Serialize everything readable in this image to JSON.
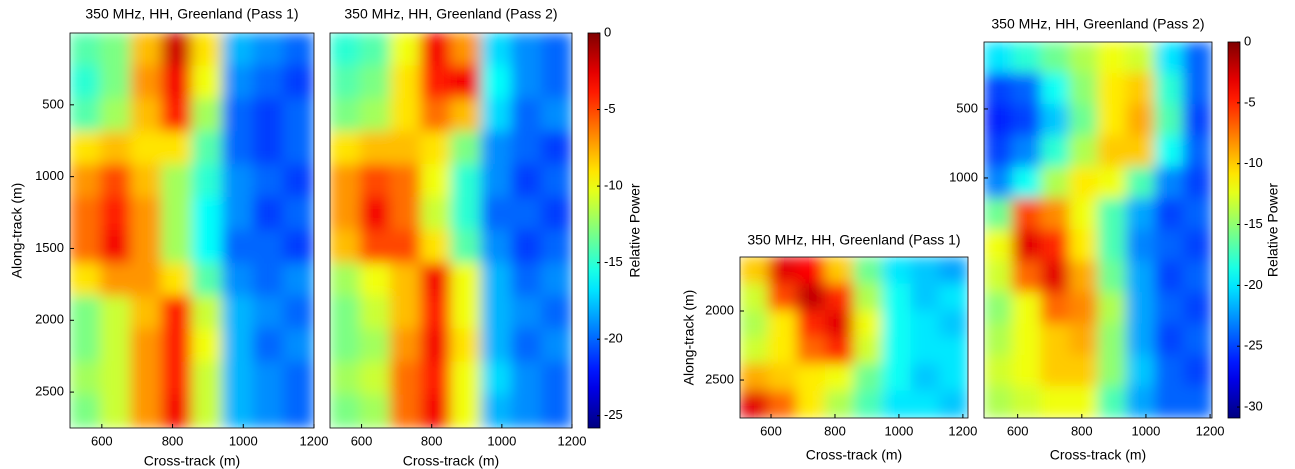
{
  "chart_data": [
    {
      "type": "heatmap",
      "title": "350 MHz, HH, Greenland (Pass 1)",
      "xlabel": "Cross-track (m)",
      "ylabel": "Along-track (m)",
      "xlim": [
        510,
        1200
      ],
      "ylim": [
        0,
        2750
      ],
      "xticks": [
        600,
        800,
        1000,
        1200
      ],
      "yticks": [
        500,
        1000,
        1500,
        2000,
        2500
      ],
      "colormap": "jet",
      "clim": [
        -25.8,
        0
      ],
      "z": [
        [
          -14,
          -13,
          -8,
          -2,
          -9,
          -18,
          -19,
          -20
        ],
        [
          -15,
          -13,
          -7,
          -3,
          -10,
          -19,
          -20,
          -21
        ],
        [
          -14,
          -12,
          -8,
          -4,
          -12,
          -20,
          -21,
          -20
        ],
        [
          -9,
          -8,
          -9,
          -9,
          -14,
          -20,
          -21,
          -20
        ],
        [
          -7,
          -5,
          -8,
          -12,
          -15,
          -19,
          -20,
          -21
        ],
        [
          -6,
          -4,
          -7,
          -12,
          -16,
          -19,
          -21,
          -20
        ],
        [
          -6,
          -3,
          -7,
          -12,
          -16,
          -20,
          -20,
          -21
        ],
        [
          -9,
          -7,
          -7,
          -9,
          -14,
          -19,
          -20,
          -19
        ],
        [
          -13,
          -11,
          -8,
          -4,
          -11,
          -18,
          -19,
          -20
        ],
        [
          -13,
          -11,
          -7,
          -4,
          -10,
          -18,
          -20,
          -19
        ],
        [
          -12,
          -11,
          -7,
          -4,
          -11,
          -18,
          -19,
          -20
        ],
        [
          -13,
          -11,
          -7,
          -3,
          -11,
          -18,
          -19,
          -20
        ]
      ]
    },
    {
      "type": "heatmap",
      "title": "350 MHz, HH, Greenland (Pass 2)",
      "xlabel": "Cross-track (m)",
      "xlim": [
        510,
        1200
      ],
      "ylim": [
        0,
        2750
      ],
      "xticks": [
        600,
        800,
        1000,
        1200
      ],
      "colormap": "jet",
      "clim": [
        -25.8,
        0
      ],
      "colorbar": {
        "label": "Relative Power",
        "ticks": [
          0,
          -5,
          -10,
          -15,
          -20,
          -25
        ]
      },
      "z": [
        [
          -15,
          -14,
          -10,
          -3,
          -7,
          -17,
          -19,
          -20
        ],
        [
          -14,
          -13,
          -9,
          -4,
          -3,
          -16,
          -19,
          -20
        ],
        [
          -13,
          -12,
          -9,
          -6,
          -8,
          -17,
          -20,
          -19
        ],
        [
          -9,
          -8,
          -8,
          -9,
          -13,
          -19,
          -20,
          -21
        ],
        [
          -7,
          -5,
          -6,
          -10,
          -15,
          -19,
          -21,
          -20
        ],
        [
          -7,
          -3,
          -6,
          -11,
          -15,
          -20,
          -20,
          -21
        ],
        [
          -8,
          -5,
          -5,
          -9,
          -14,
          -19,
          -21,
          -20
        ],
        [
          -12,
          -10,
          -8,
          -3,
          -10,
          -18,
          -20,
          -19
        ],
        [
          -13,
          -11,
          -8,
          -4,
          -10,
          -18,
          -19,
          -20
        ],
        [
          -13,
          -12,
          -7,
          -3,
          -9,
          -18,
          -20,
          -19
        ],
        [
          -12,
          -11,
          -6,
          -4,
          -10,
          -17,
          -19,
          -20
        ],
        [
          -13,
          -12,
          -6,
          -3,
          -10,
          -18,
          -19,
          -20
        ]
      ]
    },
    {
      "type": "heatmap",
      "title": "350 MHz, HH, Greenland (Pass 1)",
      "xlabel": "Cross-track (m)",
      "ylabel": "Along-track (m)",
      "xlim": [
        503,
        1216
      ],
      "ylim": [
        1609,
        2775
      ],
      "xticks": [
        600,
        800,
        1000,
        1200
      ],
      "yticks": [
        2000,
        2500
      ],
      "colormap": "jet",
      "clim": [
        -30.9,
        0
      ],
      "z": [
        [
          -10,
          -3,
          -4,
          -10,
          -16,
          -20,
          -21,
          -22
        ],
        [
          -13,
          -6,
          -2,
          -5,
          -14,
          -19,
          -21,
          -20
        ],
        [
          -14,
          -11,
          -5,
          -3,
          -12,
          -19,
          -20,
          -21
        ],
        [
          -13,
          -11,
          -7,
          -5,
          -13,
          -19,
          -20,
          -20
        ],
        [
          -9,
          -10,
          -11,
          -12,
          -16,
          -19,
          -21,
          -20
        ],
        [
          -3,
          -7,
          -11,
          -14,
          -17,
          -20,
          -20,
          -21
        ]
      ]
    },
    {
      "type": "heatmap",
      "title": "350 MHz, HH, Greenland (Pass 2)",
      "xlabel": "Cross-track (m)",
      "xlim": [
        495,
        1206
      ],
      "ylim": [
        15,
        2739
      ],
      "xticks": [
        600,
        800,
        1000,
        1200
      ],
      "yticks": [
        500,
        1000
      ],
      "colormap": "jet",
      "clim": [
        -30.9,
        0
      ],
      "colorbar": {
        "label": "Relative Power",
        "ticks": [
          0,
          -5,
          -10,
          -15,
          -20,
          -25,
          -30
        ]
      },
      "z": [
        [
          -20,
          -18,
          -16,
          -14,
          -12,
          -13,
          -20,
          -24
        ],
        [
          -25,
          -24,
          -19,
          -15,
          -11,
          -10,
          -18,
          -24
        ],
        [
          -26,
          -25,
          -21,
          -16,
          -11,
          -9,
          -17,
          -25
        ],
        [
          -25,
          -23,
          -18,
          -14,
          -10,
          -10,
          -19,
          -24
        ],
        [
          -23,
          -19,
          -14,
          -11,
          -12,
          -17,
          -23,
          -25
        ],
        [
          -16,
          -6,
          -8,
          -12,
          -17,
          -22,
          -25,
          -24
        ],
        [
          -12,
          -3,
          -5,
          -11,
          -17,
          -23,
          -24,
          -25
        ],
        [
          -13,
          -7,
          -3,
          -9,
          -16,
          -22,
          -25,
          -24
        ],
        [
          -15,
          -12,
          -7,
          -8,
          -14,
          -22,
          -24,
          -25
        ],
        [
          -14,
          -12,
          -10,
          -9,
          -15,
          -22,
          -25,
          -24
        ],
        [
          -13,
          -12,
          -10,
          -10,
          -15,
          -21,
          -24,
          -25
        ],
        [
          -14,
          -13,
          -12,
          -12,
          -17,
          -22,
          -24,
          -24
        ]
      ]
    }
  ]
}
